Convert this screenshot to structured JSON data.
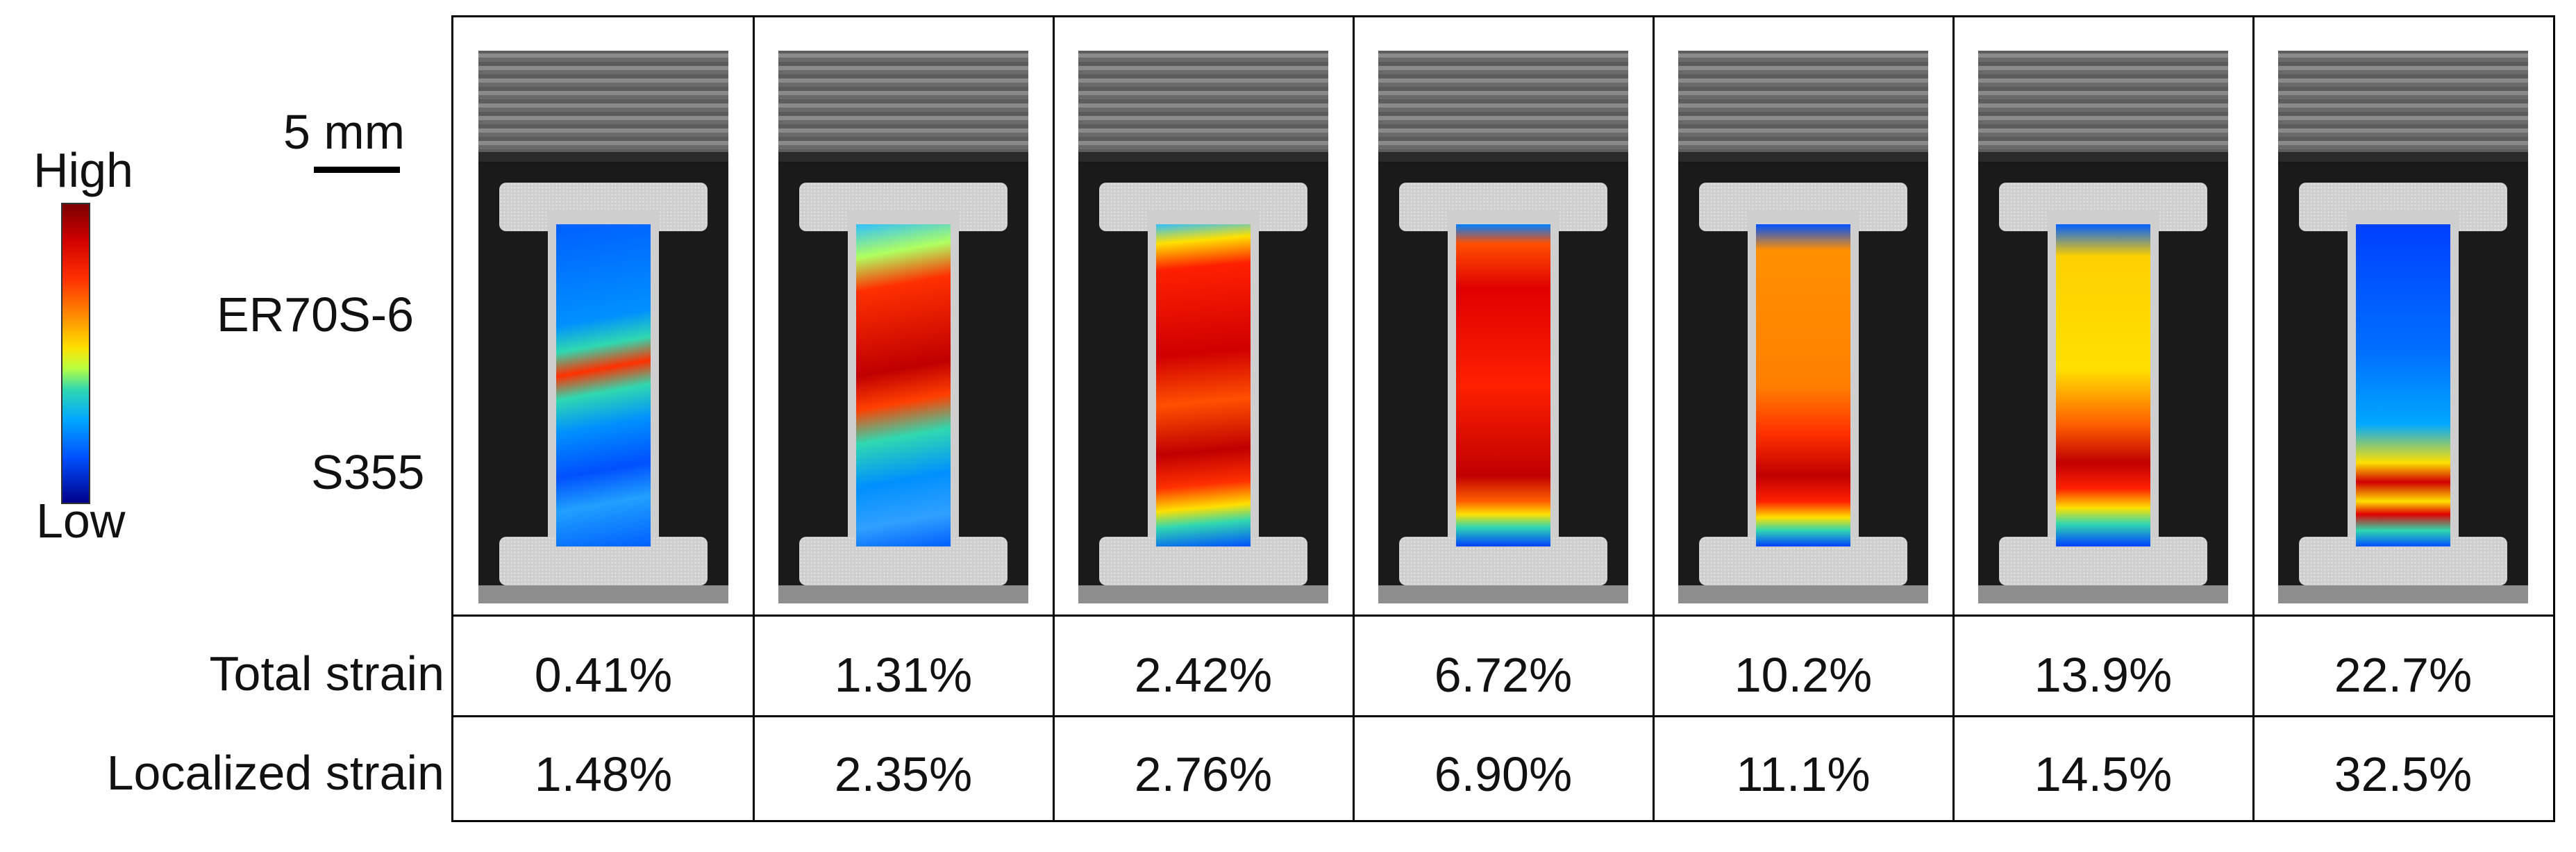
{
  "legend": {
    "high": "High",
    "low": "Low",
    "scale": "5 mm",
    "material_top": "ER70S-6",
    "material_bottom": "S355"
  },
  "rows": {
    "total_label": "Total strain",
    "localized_label": "Localized strain"
  },
  "columns": [
    {
      "total": "0.41%",
      "localized": "1.48%"
    },
    {
      "total": "1.31%",
      "localized": "2.35%"
    },
    {
      "total": "2.42%",
      "localized": "2.76%"
    },
    {
      "total": "6.72%",
      "localized": "6.90%"
    },
    {
      "total": "10.2%",
      "localized": "11.1%"
    },
    {
      "total": "13.9%",
      "localized": "14.5%"
    },
    {
      "total": "22.7%",
      "localized": "32.5%"
    }
  ],
  "strain_maps": [
    "linear-gradient(170deg, #0060ff 0%, #0090ff 30%, #30d8b0 38%, #ff3000 45%, #30d8b0 52%, #0090ff 62%, #0050ff 75%, #20a0ff 85%, #0060ff 100%)",
    "linear-gradient(170deg, #30c0ff 0%, #b0ff60 10%, #ff3000 20%, #c00000 45%, #ff4000 55%, #30d8b0 65%, #0090ff 78%, #30a0ff 90%, #0060ff 100%)",
    "linear-gradient(175deg, #30c0ff 0%, #ffe000 6%, #ff2000 14%, #d00000 40%, #ff5000 55%, #c00000 70%, #ff3000 80%, #ffe000 87%, #30d8b0 92%, #0050ff 100%)",
    "linear-gradient(180deg, #0080ff 0%, #ff5000 6%, #e00000 20%, #ff2000 50%, #c00000 78%, #ff6000 86%, #ffe000 90%, #30d8b0 94%, #0040ff 100%)",
    "linear-gradient(180deg, #0050ff 0%, #ff9000 8%, #ff8000 50%, #ff3000 65%, #c00000 78%, #ff2000 86%, #ffe000 91%, #30d8b0 95%, #0040ff 100%)",
    "linear-gradient(180deg, #0060ff 0%, #ffd000 10%, #ffe000 45%, #ff6000 62%, #c00000 74%, #ff2000 82%, #ffe000 88%, #30d8b0 93%, #0040ff 100%)",
    "linear-gradient(180deg, #0040ff 0%, #0070ff 40%, #00a8ff 62%, #ffe000 74%, #d00000 80%, #ffe000 86%, #e00000 90%, #30d8b0 95%, #0050ff 100%)"
  ]
}
